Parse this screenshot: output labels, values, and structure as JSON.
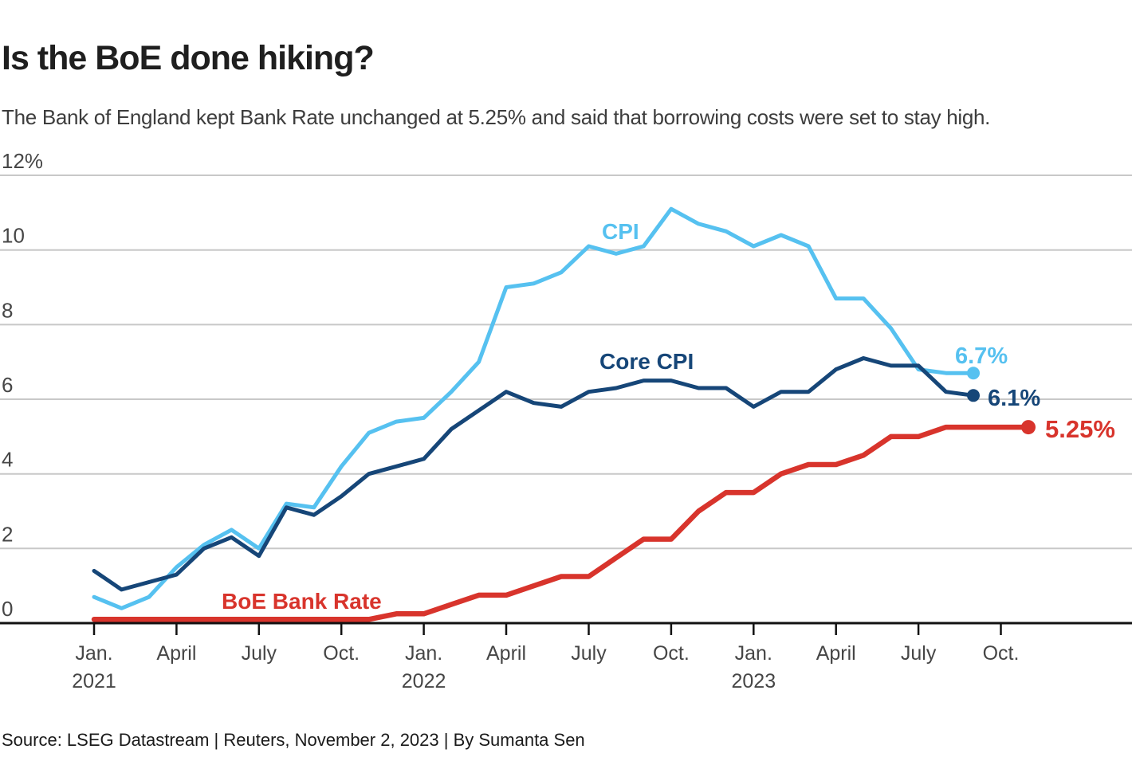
{
  "header": {
    "title": "Is the BoE done hiking?",
    "subtitle": "The Bank of England kept Bank Rate unchanged at 5.25% and said that borrowing costs were set to stay high."
  },
  "footer": {
    "source": "Source: LSEG Datastream | Reuters, November 2, 2023 | By Sumanta Sen"
  },
  "chart_data": {
    "type": "line",
    "title": "Is the BoE done hiking?",
    "subtitle": "The Bank of England kept Bank Rate unchanged at 5.25% and said that borrowing costs were set to stay high.",
    "source": "Source: LSEG Datastream | Reuters, November 2, 2023 | By Sumanta Sen",
    "unit": "%",
    "ylim": [
      0,
      12
    ],
    "grid": "horizontal",
    "legend_position": "inline-labels",
    "x_months": [
      "2021-01",
      "2021-02",
      "2021-03",
      "2021-04",
      "2021-05",
      "2021-06",
      "2021-07",
      "2021-08",
      "2021-09",
      "2021-10",
      "2021-11",
      "2021-12",
      "2022-01",
      "2022-02",
      "2022-03",
      "2022-04",
      "2022-05",
      "2022-06",
      "2022-07",
      "2022-08",
      "2022-09",
      "2022-10",
      "2022-11",
      "2022-12",
      "2023-01",
      "2023-02",
      "2023-03",
      "2023-04",
      "2023-05",
      "2023-06",
      "2023-07",
      "2023-08",
      "2023-09",
      "2023-10",
      "2023-11"
    ],
    "yticks": [
      {
        "value": 0,
        "label": "0"
      },
      {
        "value": 2,
        "label": "2"
      },
      {
        "value": 4,
        "label": "4"
      },
      {
        "value": 6,
        "label": "6"
      },
      {
        "value": 8,
        "label": "8"
      },
      {
        "value": 10,
        "label": "10"
      },
      {
        "value": 12,
        "label": "12%"
      }
    ],
    "xticks": [
      {
        "index": 0,
        "label": "Jan.",
        "year": "2021"
      },
      {
        "index": 3,
        "label": "April"
      },
      {
        "index": 6,
        "label": "July"
      },
      {
        "index": 9,
        "label": "Oct."
      },
      {
        "index": 12,
        "label": "Jan.",
        "year": "2022"
      },
      {
        "index": 15,
        "label": "April"
      },
      {
        "index": 18,
        "label": "July"
      },
      {
        "index": 21,
        "label": "Oct."
      },
      {
        "index": 24,
        "label": "Jan.",
        "year": "2023"
      },
      {
        "index": 27,
        "label": "April"
      },
      {
        "index": 30,
        "label": "July"
      },
      {
        "index": 33,
        "label": "Oct."
      }
    ],
    "series": [
      {
        "name": "CPI",
        "slug": "cpi",
        "color": "#56c1f0",
        "end_label": "6.7%",
        "end_value": 6.7,
        "values": [
          0.7,
          0.4,
          0.7,
          1.5,
          2.1,
          2.5,
          2.0,
          3.2,
          3.1,
          4.2,
          5.1,
          5.4,
          5.5,
          6.2,
          7.0,
          9.0,
          9.1,
          9.4,
          10.1,
          9.9,
          10.1,
          11.1,
          10.7,
          10.5,
          10.1,
          10.4,
          10.1,
          8.7,
          8.7,
          7.9,
          6.8,
          6.7,
          6.7,
          null,
          null
        ]
      },
      {
        "name": "Core CPI",
        "slug": "core-cpi",
        "color": "#164678",
        "end_label": "6.1%",
        "end_value": 6.1,
        "values": [
          1.4,
          0.9,
          1.1,
          1.3,
          2.0,
          2.3,
          1.8,
          3.1,
          2.9,
          3.4,
          4.0,
          4.2,
          4.4,
          5.2,
          5.7,
          6.2,
          5.9,
          5.8,
          6.2,
          6.3,
          6.5,
          6.5,
          6.3,
          6.3,
          5.8,
          6.2,
          6.2,
          6.8,
          7.1,
          6.9,
          6.9,
          6.2,
          6.1,
          null,
          null
        ]
      },
      {
        "name": "BoE Bank Rate",
        "slug": "boe-bank-rate",
        "color": "#d8342c",
        "end_label": "5.25%",
        "end_value": 5.25,
        "values": [
          0.1,
          0.1,
          0.1,
          0.1,
          0.1,
          0.1,
          0.1,
          0.1,
          0.1,
          0.1,
          0.1,
          0.25,
          0.25,
          0.5,
          0.75,
          0.75,
          1.0,
          1.25,
          1.25,
          1.75,
          2.25,
          2.25,
          3.0,
          3.5,
          3.5,
          4.0,
          4.25,
          4.25,
          4.5,
          5.0,
          5.0,
          5.25,
          5.25,
          5.25,
          5.25
        ]
      }
    ],
    "colors": {
      "cpi": "#56c1f0",
      "core_cpi": "#164678",
      "bank_rate": "#d8342c",
      "grid": "#c8c8c8",
      "axis": "#111111",
      "tick_text": "#464646"
    }
  }
}
